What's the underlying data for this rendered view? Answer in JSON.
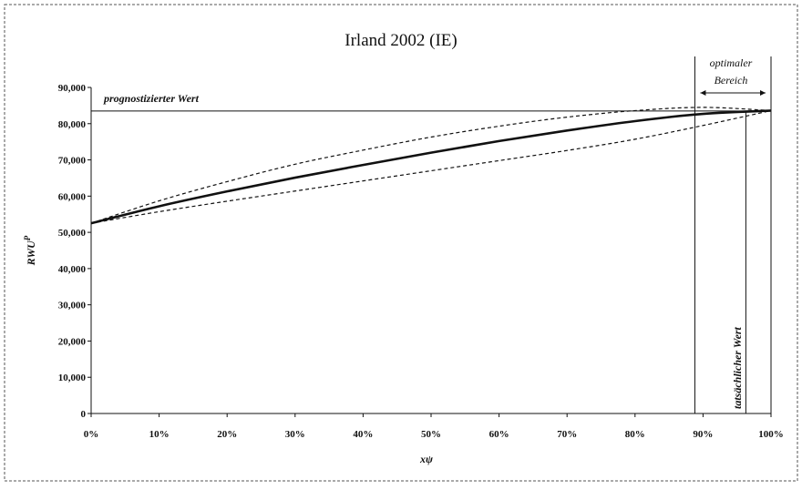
{
  "chart_data": {
    "type": "line",
    "title": "Irland 2002 (IE)",
    "xlabel": "xψ",
    "ylabel": "RWU",
    "ylabel_superscript": "P",
    "xlim": [
      0,
      100
    ],
    "ylim": [
      0,
      90000
    ],
    "x_ticks": [
      "0%",
      "10%",
      "20%",
      "30%",
      "40%",
      "50%",
      "60%",
      "70%",
      "80%",
      "90%",
      "100%"
    ],
    "y_ticks": [
      "0",
      "10,000",
      "20,000",
      "30,000",
      "40,000",
      "50,000",
      "60,000",
      "70,000",
      "80,000",
      "90,000"
    ],
    "grid": false,
    "x": [
      0,
      10,
      20,
      30,
      40,
      50,
      60,
      70,
      80,
      90,
      100
    ],
    "series": [
      {
        "values": [
          52500,
          57200,
          61300,
          65100,
          68600,
          72000,
          75200,
          78100,
          80700,
          82700,
          83600
        ],
        "style": "solid",
        "color": "#111111"
      },
      {
        "values": [
          52500,
          58700,
          64000,
          68800,
          72700,
          76300,
          79300,
          81800,
          83600,
          84500,
          83600
        ],
        "style": "dashed",
        "color": "#111111"
      },
      {
        "values": [
          52500,
          55700,
          58600,
          61400,
          64200,
          67000,
          69800,
          72600,
          75700,
          79500,
          83600
        ],
        "style": "dashed",
        "color": "#111111"
      }
    ],
    "reference_lines": {
      "predicted_value": 83500,
      "actual_value_x": 96.3,
      "optimal_range_x": [
        88.8,
        100
      ]
    },
    "annotations": {
      "predicted": "prognostizierter Wert",
      "actual": "tatsächlicher Wert",
      "optimal_line1": "optimaler",
      "optimal_line2": "Bereich"
    }
  }
}
